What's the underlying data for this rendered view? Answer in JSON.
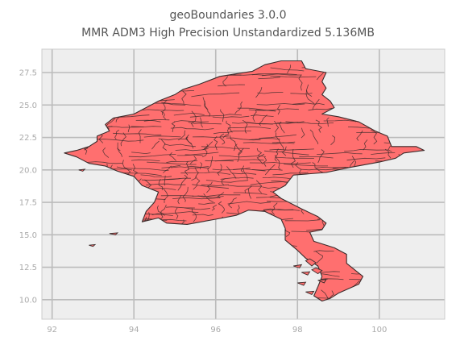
{
  "chart_data": {
    "type": "map",
    "title_lines": [
      "geoBoundaries 3.0.0",
      "MMR ADM3 High Precision Unstandardized 5.136MB"
    ],
    "xlabel": "",
    "ylabel": "",
    "x_ticks": [
      92,
      94,
      96,
      98,
      100
    ],
    "y_ticks": [
      10.0,
      12.5,
      15.0,
      17.5,
      20.0,
      22.5,
      25.0,
      27.5
    ],
    "x_tick_labels": [
      "92",
      "94",
      "96",
      "98",
      "100"
    ],
    "y_tick_labels": [
      "10.0",
      "12.5",
      "15.0",
      "17.5",
      "20.0",
      "22.5",
      "25.0",
      "27.5"
    ],
    "xlim": [
      91.75,
      101.6
    ],
    "ylim": [
      8.5,
      29.3
    ],
    "grid": true,
    "region_fill": "#ff6f6f",
    "region_edge": "#3b2b2b",
    "background": "#eeeeee",
    "grid_color": "#bbbbbb",
    "outline": [
      [
        92.3,
        21.3
      ],
      [
        92.6,
        21.5
      ],
      [
        92.9,
        21.8
      ],
      [
        93.1,
        22.2
      ],
      [
        93.1,
        22.6
      ],
      [
        93.4,
        23.0
      ],
      [
        93.3,
        23.5
      ],
      [
        93.5,
        24.0
      ],
      [
        94.0,
        24.3
      ],
      [
        94.3,
        24.8
      ],
      [
        94.6,
        25.3
      ],
      [
        95.0,
        25.8
      ],
      [
        95.2,
        26.2
      ],
      [
        95.6,
        26.6
      ],
      [
        96.1,
        27.2
      ],
      [
        96.5,
        27.4
      ],
      [
        96.9,
        27.6
      ],
      [
        97.2,
        28.1
      ],
      [
        97.6,
        28.4
      ],
      [
        98.1,
        28.4
      ],
      [
        98.2,
        27.8
      ],
      [
        98.7,
        27.5
      ],
      [
        98.6,
        26.8
      ],
      [
        98.7,
        26.3
      ],
      [
        98.6,
        25.8
      ],
      [
        98.8,
        25.3
      ],
      [
        98.9,
        24.8
      ],
      [
        98.6,
        24.3
      ],
      [
        99.0,
        24.1
      ],
      [
        99.5,
        23.7
      ],
      [
        99.9,
        23.0
      ],
      [
        100.2,
        22.6
      ],
      [
        100.3,
        21.8
      ],
      [
        100.9,
        21.8
      ],
      [
        101.1,
        21.5
      ],
      [
        100.6,
        21.3
      ],
      [
        100.4,
        20.9
      ],
      [
        100.0,
        20.6
      ],
      [
        99.3,
        20.2
      ],
      [
        98.7,
        19.8
      ],
      [
        97.9,
        19.6
      ],
      [
        97.7,
        18.8
      ],
      [
        97.4,
        18.3
      ],
      [
        97.6,
        17.8
      ],
      [
        98.1,
        17.0
      ],
      [
        98.5,
        16.4
      ],
      [
        98.7,
        15.9
      ],
      [
        98.6,
        15.4
      ],
      [
        98.3,
        15.2
      ],
      [
        98.4,
        14.5
      ],
      [
        98.9,
        14.0
      ],
      [
        99.2,
        13.5
      ],
      [
        99.2,
        12.8
      ],
      [
        99.4,
        12.3
      ],
      [
        99.6,
        11.8
      ],
      [
        99.5,
        11.2
      ],
      [
        99.0,
        10.5
      ],
      [
        98.8,
        10.1
      ],
      [
        98.6,
        9.9
      ],
      [
        98.4,
        10.3
      ],
      [
        98.5,
        11.0
      ],
      [
        98.6,
        11.8
      ],
      [
        98.5,
        12.6
      ],
      [
        98.2,
        13.2
      ],
      [
        98.0,
        13.8
      ],
      [
        97.7,
        14.6
      ],
      [
        97.7,
        15.5
      ],
      [
        97.6,
        16.2
      ],
      [
        97.2,
        16.8
      ],
      [
        96.8,
        16.9
      ],
      [
        96.5,
        16.5
      ],
      [
        96.0,
        16.2
      ],
      [
        95.3,
        15.8
      ],
      [
        94.8,
        15.9
      ],
      [
        94.6,
        16.3
      ],
      [
        94.2,
        16.0
      ],
      [
        94.3,
        16.8
      ],
      [
        94.5,
        17.5
      ],
      [
        94.6,
        18.3
      ],
      [
        94.2,
        18.8
      ],
      [
        94.0,
        19.5
      ],
      [
        93.6,
        19.9
      ],
      [
        93.3,
        20.3
      ],
      [
        92.9,
        20.5
      ],
      [
        92.6,
        21.0
      ],
      [
        92.3,
        21.3
      ]
    ],
    "islands": [
      [
        [
          98.2,
          13.0
        ],
        [
          98.35,
          12.6
        ],
        [
          98.45,
          12.85
        ],
        [
          98.3,
          13.15
        ],
        [
          98.2,
          13.0
        ]
      ],
      [
        [
          98.35,
          12.3
        ],
        [
          98.5,
          12.0
        ],
        [
          98.6,
          12.25
        ],
        [
          98.45,
          12.45
        ],
        [
          98.35,
          12.3
        ]
      ],
      [
        [
          98.1,
          12.1
        ],
        [
          98.25,
          11.9
        ],
        [
          98.3,
          12.15
        ],
        [
          98.1,
          12.1
        ]
      ],
      [
        [
          97.9,
          12.6
        ],
        [
          98.05,
          12.45
        ],
        [
          98.1,
          12.7
        ],
        [
          97.9,
          12.6
        ]
      ],
      [
        [
          98.5,
          11.5
        ],
        [
          98.65,
          11.3
        ],
        [
          98.7,
          11.55
        ],
        [
          98.5,
          11.5
        ]
      ],
      [
        [
          98.0,
          11.3
        ],
        [
          98.15,
          11.1
        ],
        [
          98.2,
          11.35
        ],
        [
          98.0,
          11.3
        ]
      ],
      [
        [
          98.2,
          10.6
        ],
        [
          98.35,
          10.4
        ],
        [
          98.4,
          10.65
        ],
        [
          98.2,
          10.6
        ]
      ],
      [
        [
          93.4,
          15.1
        ],
        [
          93.55,
          15.0
        ],
        [
          93.6,
          15.15
        ],
        [
          93.4,
          15.1
        ]
      ],
      [
        [
          92.9,
          14.2
        ],
        [
          93.0,
          14.1
        ],
        [
          93.05,
          14.25
        ],
        [
          92.9,
          14.2
        ]
      ],
      [
        [
          92.65,
          20.0
        ],
        [
          92.75,
          19.9
        ],
        [
          92.8,
          20.05
        ],
        [
          92.65,
          20.0
        ]
      ]
    ]
  }
}
